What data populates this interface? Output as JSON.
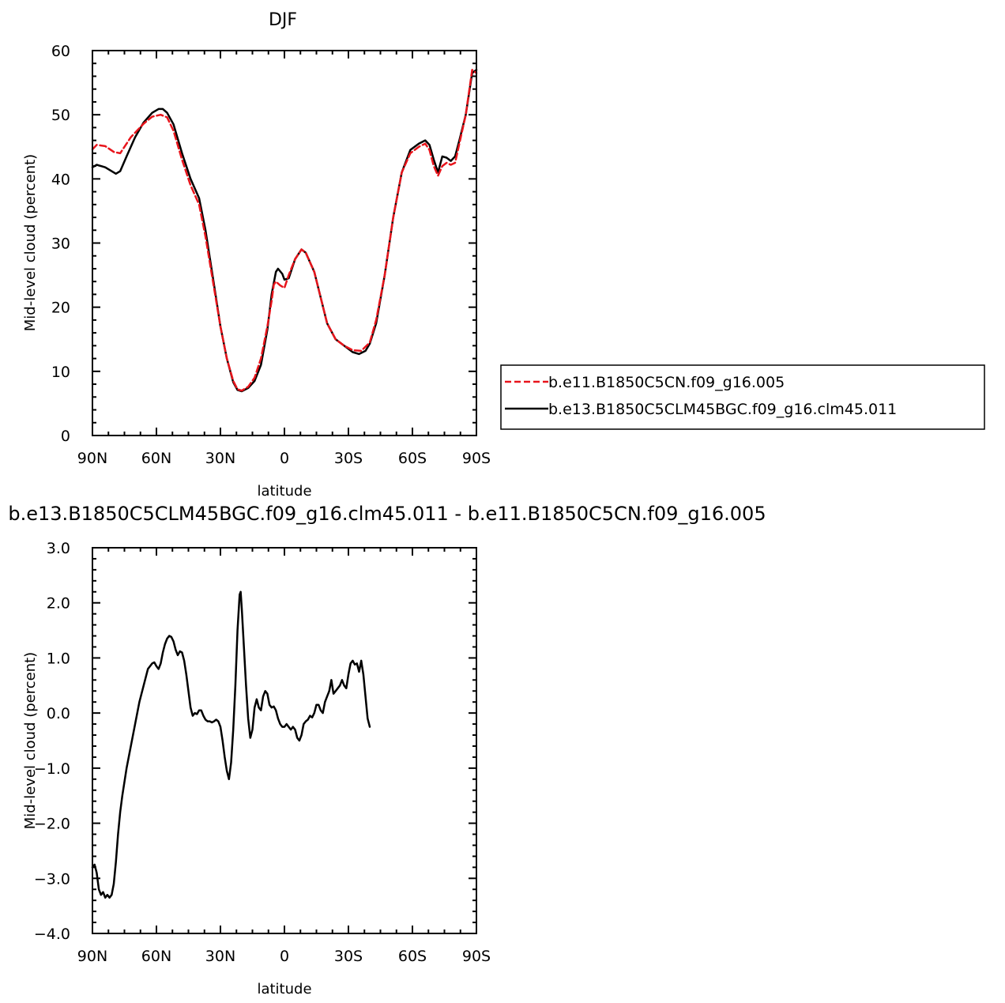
{
  "chart_data": [
    {
      "type": "line",
      "title": "DJF",
      "xlabel": "latitude",
      "ylabel": "Mid-level cloud (percent)",
      "xlim": [
        -90,
        90
      ],
      "ylim": [
        0,
        60
      ],
      "x_ticks": [
        {
          "value": -90,
          "label": "90N"
        },
        {
          "value": -60,
          "label": "60N"
        },
        {
          "value": -30,
          "label": "30N"
        },
        {
          "value": 0,
          "label": "0"
        },
        {
          "value": 30,
          "label": "30S"
        },
        {
          "value": 60,
          "label": "60S"
        },
        {
          "value": 90,
          "label": "90S"
        }
      ],
      "y_ticks": [
        {
          "value": 0,
          "label": "0"
        },
        {
          "value": 10,
          "label": "10"
        },
        {
          "value": 20,
          "label": "20"
        },
        {
          "value": 30,
          "label": "30"
        },
        {
          "value": 40,
          "label": "40"
        },
        {
          "value": 50,
          "label": "50"
        },
        {
          "value": 60,
          "label": "60"
        }
      ],
      "legend_position": "right",
      "series": [
        {
          "name": "b.e11.B1850C5CN.f09_g16.005",
          "color": "#e8141b",
          "style": "dashed",
          "points": [
            [
              -90,
              44.6
            ],
            [
              -88,
              45.3
            ],
            [
              -84,
              45.1
            ],
            [
              -80,
              44.2
            ],
            [
              -77,
              44.0
            ],
            [
              -72,
              46.5
            ],
            [
              -66,
              48.6
            ],
            [
              -62,
              49.7
            ],
            [
              -58,
              50.0
            ],
            [
              -55,
              49.6
            ],
            [
              -52,
              47.5
            ],
            [
              -48,
              43.0
            ],
            [
              -44,
              39.0
            ],
            [
              -40,
              36.0
            ],
            [
              -37,
              31.0
            ],
            [
              -33,
              23.0
            ],
            [
              -30,
              17.0
            ],
            [
              -27,
              12.0
            ],
            [
              -24,
              8.5
            ],
            [
              -22,
              7.2
            ],
            [
              -20,
              7.0
            ],
            [
              -17,
              7.6
            ],
            [
              -14,
              9.0
            ],
            [
              -11,
              12.0
            ],
            [
              -8,
              17.0
            ],
            [
              -6,
              21.0
            ],
            [
              -5,
              23.5
            ],
            [
              -4,
              24.0
            ],
            [
              -2,
              23.4
            ],
            [
              0,
              23.0
            ],
            [
              2,
              25.0
            ],
            [
              5,
              27.5
            ],
            [
              8,
              29.0
            ],
            [
              10,
              28.5
            ],
            [
              14,
              25.5
            ],
            [
              17,
              21.5
            ],
            [
              20,
              17.5
            ],
            [
              24,
              15.0
            ],
            [
              28,
              14.0
            ],
            [
              32,
              13.3
            ],
            [
              36,
              13.2
            ],
            [
              40,
              14.5
            ],
            [
              43,
              18.0
            ],
            [
              47,
              25.0
            ],
            [
              51,
              34.0
            ],
            [
              55,
              41.0
            ],
            [
              59,
              44.0
            ],
            [
              63,
              45.0
            ],
            [
              66,
              45.5
            ],
            [
              68,
              44.5
            ],
            [
              70,
              42.0
            ],
            [
              72,
              40.5
            ],
            [
              74,
              42.0
            ],
            [
              76,
              42.5
            ],
            [
              78,
              42.2
            ],
            [
              80,
              42.5
            ],
            [
              82,
              45.5
            ],
            [
              85,
              50.0
            ],
            [
              88,
              57.0
            ],
            [
              90,
              56.5
            ]
          ]
        },
        {
          "name": "b.e13.B1850C5CLM45BGC.f09_g16.clm45.011",
          "color": "#000000",
          "style": "solid",
          "points": [
            [
              -90,
              41.8
            ],
            [
              -88,
              42.2
            ],
            [
              -84,
              41.8
            ],
            [
              -81,
              41.2
            ],
            [
              -79,
              40.8
            ],
            [
              -77,
              41.2
            ],
            [
              -74,
              43.5
            ],
            [
              -70,
              46.5
            ],
            [
              -66,
              48.8
            ],
            [
              -62,
              50.3
            ],
            [
              -59,
              50.9
            ],
            [
              -57,
              50.9
            ],
            [
              -55,
              50.3
            ],
            [
              -52,
              48.5
            ],
            [
              -48,
              44.0
            ],
            [
              -44,
              40.0
            ],
            [
              -40,
              37.0
            ],
            [
              -37,
              32.0
            ],
            [
              -33,
              23.5
            ],
            [
              -30,
              17.0
            ],
            [
              -27,
              12.0
            ],
            [
              -24,
              8.3
            ],
            [
              -22,
              7.1
            ],
            [
              -20,
              6.9
            ],
            [
              -17,
              7.4
            ],
            [
              -14,
              8.5
            ],
            [
              -11,
              11.0
            ],
            [
              -8,
              16.5
            ],
            [
              -6,
              22.0
            ],
            [
              -4,
              25.5
            ],
            [
              -3,
              26.0
            ],
            [
              -1,
              25.2
            ],
            [
              0,
              24.3
            ],
            [
              2,
              24.5
            ],
            [
              5,
              27.5
            ],
            [
              8,
              29.0
            ],
            [
              10,
              28.5
            ],
            [
              14,
              25.5
            ],
            [
              17,
              21.5
            ],
            [
              20,
              17.5
            ],
            [
              24,
              15.0
            ],
            [
              28,
              14.0
            ],
            [
              32,
              13.0
            ],
            [
              35,
              12.7
            ],
            [
              38,
              13.2
            ],
            [
              40,
              14.3
            ],
            [
              43,
              17.5
            ],
            [
              47,
              25.0
            ],
            [
              51,
              34.0
            ],
            [
              55,
              41.0
            ],
            [
              59,
              44.5
            ],
            [
              63,
              45.5
            ],
            [
              66,
              46.0
            ],
            [
              68,
              45.3
            ],
            [
              70,
              43.0
            ],
            [
              72,
              41.0
            ],
            [
              74,
              43.5
            ],
            [
              76,
              43.3
            ],
            [
              78,
              42.8
            ],
            [
              80,
              43.5
            ],
            [
              82,
              46.0
            ],
            [
              85,
              50.0
            ],
            [
              88,
              56.5
            ],
            [
              90,
              57.0
            ]
          ]
        }
      ]
    },
    {
      "type": "line",
      "title": "b.e13.B1850C5CLM45BGC.f09_g16.clm45.011 - b.e11.B1850C5CN.f09_g16.005",
      "xlabel": "latitude",
      "ylabel": "Mid-level cloud (percent)",
      "xlim": [
        -90,
        90
      ],
      "ylim": [
        -4,
        3
      ],
      "x_ticks": [
        {
          "value": -90,
          "label": "90N"
        },
        {
          "value": -60,
          "label": "60N"
        },
        {
          "value": -30,
          "label": "30N"
        },
        {
          "value": 0,
          "label": "0"
        },
        {
          "value": 30,
          "label": "30S"
        },
        {
          "value": 60,
          "label": "60S"
        },
        {
          "value": 90,
          "label": "90S"
        }
      ],
      "y_ticks": [
        {
          "value": -4,
          "label": "−4.0"
        },
        {
          "value": -3,
          "label": "−3.0"
        },
        {
          "value": -2,
          "label": "−2.0"
        },
        {
          "value": -1,
          "label": "−1.0"
        },
        {
          "value": 0,
          "label": "0.0"
        },
        {
          "value": 1,
          "label": "1.0"
        },
        {
          "value": 2,
          "label": "2.0"
        },
        {
          "value": 3,
          "label": "3.0"
        }
      ],
      "series": [
        {
          "color": "#000000",
          "style": "solid",
          "points": [
            [
              -90,
              -2.8
            ],
            [
              -89,
              -2.75
            ],
            [
              -88,
              -2.9
            ],
            [
              -87,
              -3.2
            ],
            [
              -86,
              -3.3
            ],
            [
              -85,
              -3.25
            ],
            [
              -84,
              -3.35
            ],
            [
              -83,
              -3.3
            ],
            [
              -82,
              -3.35
            ],
            [
              -81,
              -3.3
            ],
            [
              -80,
              -3.1
            ],
            [
              -79,
              -2.7
            ],
            [
              -78,
              -2.2
            ],
            [
              -77,
              -1.8
            ],
            [
              -76,
              -1.5
            ],
            [
              -74,
              -1.0
            ],
            [
              -72,
              -0.6
            ],
            [
              -70,
              -0.2
            ],
            [
              -68,
              0.2
            ],
            [
              -66,
              0.5
            ],
            [
              -64,
              0.8
            ],
            [
              -62,
              0.9
            ],
            [
              -61,
              0.92
            ],
            [
              -60,
              0.85
            ],
            [
              -59,
              0.8
            ],
            [
              -58,
              0.9
            ],
            [
              -57,
              1.1
            ],
            [
              -56,
              1.25
            ],
            [
              -55,
              1.35
            ],
            [
              -54,
              1.4
            ],
            [
              -53,
              1.38
            ],
            [
              -52,
              1.3
            ],
            [
              -51,
              1.15
            ],
            [
              -50,
              1.05
            ],
            [
              -49,
              1.12
            ],
            [
              -48,
              1.1
            ],
            [
              -47,
              0.95
            ],
            [
              -46,
              0.7
            ],
            [
              -45,
              0.4
            ],
            [
              -44,
              0.1
            ],
            [
              -43,
              -0.05
            ],
            [
              -42,
              0.0
            ],
            [
              -41,
              -0.02
            ],
            [
              -40,
              0.05
            ],
            [
              -39,
              0.05
            ],
            [
              -38,
              -0.05
            ],
            [
              -37,
              -0.12
            ],
            [
              -36,
              -0.15
            ],
            [
              -35,
              -0.15
            ],
            [
              -34,
              -0.17
            ],
            [
              -33,
              -0.15
            ],
            [
              -32,
              -0.12
            ],
            [
              -31,
              -0.15
            ],
            [
              -30,
              -0.25
            ],
            [
              -29,
              -0.5
            ],
            [
              -28,
              -0.8
            ],
            [
              -27,
              -1.05
            ],
            [
              -26,
              -1.2
            ],
            [
              -25,
              -0.9
            ],
            [
              -24,
              -0.3
            ],
            [
              -23,
              0.5
            ],
            [
              -22,
              1.5
            ],
            [
              -21,
              2.15
            ],
            [
              -20.5,
              2.2
            ],
            [
              -20,
              1.9
            ],
            [
              -19,
              1.2
            ],
            [
              -18,
              0.5
            ],
            [
              -17,
              -0.1
            ],
            [
              -16,
              -0.45
            ],
            [
              -15,
              -0.3
            ],
            [
              -14,
              0.1
            ],
            [
              -13,
              0.25
            ],
            [
              -12,
              0.1
            ],
            [
              -11,
              0.05
            ],
            [
              -10,
              0.3
            ],
            [
              -9,
              0.4
            ],
            [
              -8,
              0.35
            ],
            [
              -7,
              0.15
            ],
            [
              -6,
              0.1
            ],
            [
              -5,
              0.12
            ],
            [
              -4,
              0.05
            ],
            [
              -3,
              -0.1
            ],
            [
              -2,
              -0.2
            ],
            [
              -1,
              -0.25
            ],
            [
              0,
              -0.25
            ],
            [
              1,
              -0.2
            ],
            [
              2,
              -0.25
            ],
            [
              3,
              -0.3
            ],
            [
              4,
              -0.25
            ],
            [
              5,
              -0.3
            ],
            [
              6,
              -0.45
            ],
            [
              7,
              -0.5
            ],
            [
              8,
              -0.4
            ],
            [
              9,
              -0.2
            ],
            [
              10,
              -0.15
            ],
            [
              11,
              -0.12
            ],
            [
              12,
              -0.05
            ],
            [
              13,
              -0.08
            ],
            [
              14,
              0.0
            ],
            [
              15,
              0.15
            ],
            [
              16,
              0.15
            ],
            [
              17,
              0.05
            ],
            [
              18,
              0.0
            ],
            [
              19,
              0.2
            ],
            [
              20,
              0.3
            ],
            [
              21,
              0.4
            ],
            [
              22,
              0.6
            ],
            [
              23,
              0.35
            ],
            [
              24,
              0.4
            ],
            [
              25,
              0.45
            ],
            [
              26,
              0.5
            ],
            [
              27,
              0.6
            ],
            [
              28,
              0.5
            ],
            [
              29,
              0.45
            ],
            [
              30,
              0.7
            ],
            [
              31,
              0.9
            ],
            [
              32,
              0.95
            ],
            [
              33,
              0.88
            ],
            [
              34,
              0.9
            ],
            [
              35,
              0.75
            ],
            [
              36,
              0.95
            ],
            [
              37,
              0.7
            ],
            [
              38,
              0.3
            ],
            [
              39,
              -0.1
            ],
            [
              40,
              -0.25
            ]
          ]
        }
      ]
    }
  ]
}
